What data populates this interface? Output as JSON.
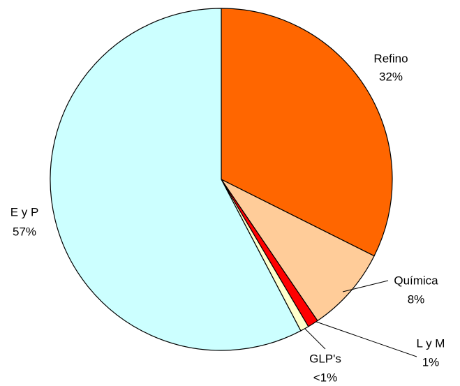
{
  "chart_data": {
    "type": "pie",
    "categories": [
      "Refino",
      "Química",
      "L y M",
      "GLP's",
      "E y P"
    ],
    "values": [
      32,
      8,
      1,
      0.8,
      57
    ],
    "value_labels": [
      "32%",
      "8%",
      "1%",
      "<1%",
      "57%"
    ],
    "colors": [
      "#ff6600",
      "#ffcc99",
      "#ff0000",
      "#ffffcc",
      "#ccffff"
    ]
  }
}
